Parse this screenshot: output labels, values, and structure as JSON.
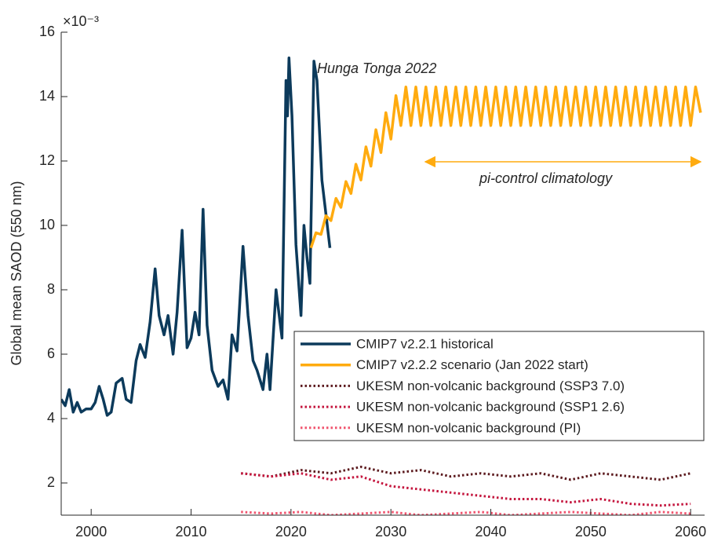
{
  "chart_data": {
    "type": "line",
    "y_label": "Global mean SAOD (550 nm)",
    "y_multiplier": "×10⁻³",
    "xlim": [
      1997,
      2061.4
    ],
    "xticks": [
      2000,
      2010,
      2020,
      2030,
      2040,
      2050,
      2060
    ],
    "ylim": [
      1,
      16
    ],
    "yticks": [
      2,
      4,
      6,
      8,
      10,
      12,
      14,
      16
    ],
    "grid": false,
    "legend": "lower right",
    "annotations": [
      "Hunga Tonga 2022",
      "pi-control climatology"
    ],
    "series": [
      {
        "name": "CMIP7 v2.2.1 historical",
        "color": "#0c3a5b",
        "style": "solid",
        "x": [
          1997,
          1997.4,
          1997.8,
          1998.2,
          1998.6,
          1999,
          1999.5,
          2000,
          2000.4,
          2000.8,
          2001.2,
          2001.6,
          2002,
          2002.5,
          2003.1,
          2003.5,
          2004,
          2004.5,
          2004.9,
          2005.4,
          2005.9,
          2006.4,
          2006.8,
          2007.3,
          2007.7,
          2008.2,
          2008.6,
          2009.1,
          2009.6,
          2010,
          2010.4,
          2010.8,
          2011.2,
          2011.6,
          2012.1,
          2012.7,
          2013.2,
          2013.7,
          2014.1,
          2014.6,
          2015.2,
          2015.7,
          2016.2,
          2016.6,
          2017.2,
          2017.6,
          2017.9,
          2018.5,
          2019.1,
          2019.5,
          2019.65,
          2019.8,
          2020.1,
          2020.5,
          2021,
          2021.3,
          2021.6,
          2021.9,
          2022.3,
          2022.6,
          2023.1,
          2023.9
        ],
        "values": [
          4.6,
          4.4,
          4.9,
          4.2,
          4.5,
          4.2,
          4.3,
          4.3,
          4.5,
          5.0,
          4.6,
          4.1,
          4.2,
          5.1,
          5.25,
          4.6,
          4.5,
          5.8,
          6.3,
          5.9,
          7.0,
          8.65,
          7.2,
          6.6,
          7.2,
          6.0,
          7.3,
          9.85,
          6.2,
          6.5,
          7.3,
          6.6,
          10.5,
          6.9,
          5.5,
          5.0,
          5.2,
          4.6,
          6.6,
          6.1,
          9.35,
          7.2,
          5.8,
          5.5,
          4.9,
          6.0,
          4.9,
          8.0,
          6.5,
          14.5,
          13.4,
          15.2,
          13.4,
          9.4,
          7.2,
          10.0,
          9.0,
          8.2,
          15.1,
          14.5,
          11.4,
          9.3
        ]
      },
      {
        "name": "CMIP7 v2.2.2 scenario (Jan 2022 start)",
        "color": "#ffab0f",
        "style": "solid",
        "x": [
          2022,
          2022.5,
          2023,
          2023.5,
          2024,
          2024.5,
          2025,
          2025.5,
          2026,
          2026.5,
          2027,
          2027.5,
          2028,
          2028.5,
          2029,
          2029.5,
          2030,
          2030.5,
          2031,
          2031.5,
          2032,
          2032.5,
          2033,
          2033.5,
          2034,
          2034.5,
          2035,
          2035.5,
          2036,
          2036.5,
          2037,
          2037.5,
          2038,
          2038.5,
          2039,
          2039.5,
          2040,
          2040.5,
          2041,
          2041.5,
          2042,
          2042.5,
          2043,
          2043.5,
          2044,
          2044.5,
          2045,
          2045.5,
          2046,
          2046.5,
          2047,
          2047.5,
          2048,
          2048.5,
          2049,
          2049.5,
          2050,
          2050.5,
          2051,
          2051.5,
          2052,
          2052.5,
          2053,
          2053.5,
          2054,
          2054.5,
          2055,
          2055.5,
          2056,
          2056.5,
          2057,
          2057.5,
          2058,
          2058.5,
          2059,
          2059.5,
          2060,
          2060.5,
          2061
        ],
        "values": [
          9.3,
          9.77,
          9.72,
          10.3,
          10.15,
          10.84,
          10.56,
          11.36,
          10.99,
          11.9,
          11.41,
          12.44,
          11.84,
          12.97,
          12.26,
          13.5,
          12.68,
          14.03,
          13.1,
          14.3,
          13.1,
          14.3,
          13.1,
          14.3,
          13.1,
          14.3,
          13.1,
          14.3,
          13.1,
          14.3,
          13.1,
          14.3,
          13.1,
          14.3,
          13.1,
          14.3,
          13.1,
          14.3,
          13.1,
          14.3,
          13.1,
          14.3,
          13.1,
          14.3,
          13.1,
          14.3,
          13.1,
          14.3,
          13.1,
          14.3,
          13.1,
          14.3,
          13.1,
          14.3,
          13.1,
          14.3,
          13.1,
          14.3,
          13.1,
          14.3,
          13.1,
          14.3,
          13.1,
          14.3,
          13.1,
          14.3,
          13.1,
          14.3,
          13.1,
          14.3,
          13.1,
          14.3,
          13.1,
          14.3,
          13.1,
          14.3,
          13.1,
          14.3,
          13.5
        ]
      },
      {
        "name": "UKESM non-volcanic background (SSP3 7.0)",
        "color": "#5c1a1e",
        "style": "dotted",
        "x": [
          2015,
          2018,
          2021,
          2024,
          2027,
          2030,
          2033,
          2036,
          2039,
          2042,
          2045,
          2048,
          2051,
          2054,
          2057,
          2060
        ],
        "values": [
          2.3,
          2.2,
          2.4,
          2.3,
          2.5,
          2.3,
          2.4,
          2.2,
          2.3,
          2.2,
          2.3,
          2.1,
          2.3,
          2.2,
          2.1,
          2.3
        ]
      },
      {
        "name": "UKESM non-volcanic background (SSP1 2.6)",
        "color": "#c4163e",
        "style": "dotted",
        "x": [
          2015,
          2018,
          2021,
          2024,
          2027,
          2030,
          2033,
          2036,
          2039,
          2042,
          2045,
          2048,
          2051,
          2054,
          2057,
          2060
        ],
        "values": [
          2.3,
          2.2,
          2.3,
          2.1,
          2.2,
          1.9,
          1.8,
          1.7,
          1.6,
          1.5,
          1.5,
          1.4,
          1.5,
          1.35,
          1.3,
          1.35
        ]
      },
      {
        "name": "UKESM non-volcanic background (PI)",
        "color": "#f0546e",
        "style": "dotted",
        "x": [
          2015,
          2018,
          2021,
          2024,
          2027,
          2030,
          2033,
          2036,
          2039,
          2042,
          2045,
          2048,
          2051,
          2054,
          2057,
          2060
        ],
        "values": [
          1.1,
          1.05,
          1.1,
          1.0,
          1.05,
          1.1,
          1.0,
          1.05,
          1.1,
          1.0,
          1.05,
          1.1,
          1.05,
          1.0,
          1.1,
          1.05
        ]
      }
    ]
  }
}
